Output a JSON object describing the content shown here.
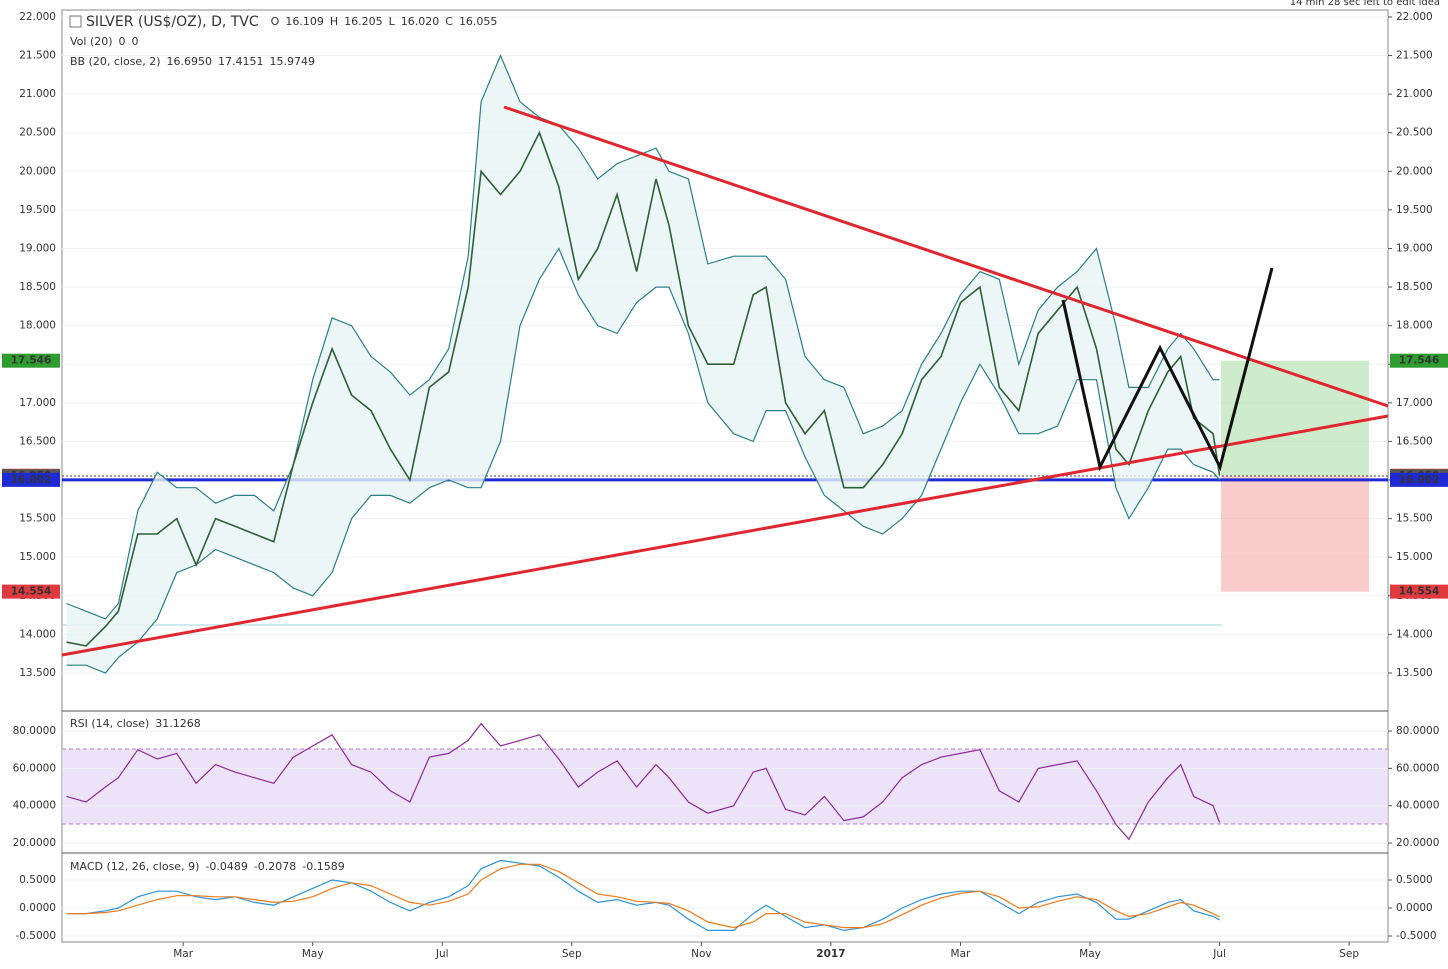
{
  "header_note": "14 min 28 sec left to edit idea",
  "chart_data": [
    {
      "type": "line",
      "legend": [
        {
          "text": "SILVER (US$/OZ), D, TVC",
          "color": "#333333"
        },
        {
          "text": "O",
          "color": "#666666"
        },
        {
          "value": 16.109,
          "color": "#8b1a1a"
        },
        {
          "text": "H",
          "color": "#666666"
        },
        {
          "value": 16.205,
          "color": "#8b1a1a"
        },
        {
          "text": "L",
          "color": "#666666"
        },
        {
          "value": 16.02,
          "label": "16.020",
          "color": "#8b1a1a"
        },
        {
          "text": "C",
          "color": "#666666"
        },
        {
          "value": 16.055,
          "color": "#8b1a1a"
        }
      ],
      "legend2": [
        {
          "text": "Vol (20)",
          "color": "#555555"
        },
        {
          "value": 0,
          "color": "#d03030"
        },
        {
          "value": 0,
          "color": "#2a9aa5"
        }
      ],
      "legend3": [
        {
          "text": "BB (20, close, 2)",
          "color": "#555555"
        },
        {
          "value": 16.695,
          "label": "16.6950",
          "color": "#8b1a1a"
        },
        {
          "value": 17.4151,
          "color": "#2a7f86"
        },
        {
          "value": 15.9749,
          "color": "#2a7f86"
        }
      ],
      "xlim": [
        0.13,
        20.6
      ],
      "ylim": [
        13.02,
        22.09
      ],
      "yticks": [
        {
          "value": 13.5,
          "label": "13.500"
        },
        {
          "value": 14,
          "label": "14.000"
        },
        {
          "value": 14.5,
          "label": "14.500"
        },
        {
          "value": 15,
          "label": "15.000"
        },
        {
          "value": 15.5,
          "label": "15.500"
        },
        {
          "value": 16,
          "label": "16.000"
        },
        {
          "value": 16.5,
          "label": "16.500"
        },
        {
          "value": 17,
          "label": "17.000"
        },
        {
          "value": 17.5,
          "label": "17.500"
        },
        {
          "value": 18,
          "label": "18.000"
        },
        {
          "value": 18.5,
          "label": "18.500"
        },
        {
          "value": 19,
          "label": "19.000"
        },
        {
          "value": 19.5,
          "label": "19.500"
        },
        {
          "value": 20,
          "label": "20.000"
        },
        {
          "value": 20.5,
          "label": "20.500"
        },
        {
          "value": 21,
          "label": "21.000"
        },
        {
          "value": 21.5,
          "label": "21.500"
        },
        {
          "value": 22,
          "label": "22.000"
        }
      ],
      "price_labels": [
        {
          "value": 17.546,
          "color": "#2e9c2e"
        },
        {
          "value": 16.055,
          "color": "#e0393e"
        },
        {
          "value": 16.05,
          "label": "16.050",
          "color": "#555555"
        },
        {
          "value": 16.002,
          "color": "#1f2ad4"
        },
        {
          "value": 14.554,
          "color": "#e0393e"
        }
      ],
      "x": [
        0.2,
        0.5,
        0.8,
        1.0,
        1.3,
        1.6,
        1.9,
        2.2,
        2.5,
        2.8,
        3.1,
        3.4,
        3.7,
        4.0,
        4.3,
        4.6,
        4.9,
        5.2,
        5.5,
        5.8,
        6.1,
        6.4,
        6.6,
        6.9,
        7.2,
        7.5,
        7.8,
        8.1,
        8.4,
        8.7,
        9.0,
        9.3,
        9.5,
        9.8,
        10.1,
        10.5,
        10.8,
        11.0,
        11.3,
        11.6,
        11.9,
        12.2,
        12.5,
        12.8,
        13.1,
        13.4,
        13.7,
        14.0,
        14.3,
        14.6,
        14.9,
        15.2,
        15.5,
        15.8,
        16.1,
        16.4,
        16.6,
        16.9,
        17.2,
        17.4,
        17.6,
        17.9,
        18.0
      ],
      "series": [
        {
          "color": "#2a7f86",
          "values": [
            14.4,
            14.3,
            14.2,
            14.4,
            15.6,
            16.1,
            15.9,
            15.9,
            15.7,
            15.8,
            15.8,
            15.6,
            16.2,
            17.3,
            18.1,
            18.0,
            17.6,
            17.4,
            17.1,
            17.3,
            17.7,
            18.9,
            20.9,
            21.5,
            20.9,
            20.7,
            20.6,
            20.3,
            19.9,
            20.1,
            20.2,
            20.3,
            20.0,
            19.9,
            18.8,
            18.9,
            18.9,
            18.9,
            18.6,
            17.6,
            17.3,
            17.2,
            16.6,
            16.7,
            16.9,
            17.5,
            17.9,
            18.4,
            18.7,
            18.6,
            17.5,
            18.2,
            18.5,
            18.7,
            19.0,
            18.0,
            17.2,
            17.2,
            17.7,
            17.9,
            17.7,
            17.3,
            17.3
          ]
        },
        {
          "color": "#2a7f86",
          "values": [
            13.6,
            13.6,
            13.5,
            13.7,
            13.9,
            14.2,
            14.8,
            14.9,
            15.1,
            15.0,
            14.9,
            14.8,
            14.6,
            14.5,
            14.8,
            15.5,
            15.8,
            15.8,
            15.7,
            15.9,
            16.0,
            15.9,
            15.9,
            16.5,
            18.0,
            18.6,
            19.0,
            18.4,
            18.0,
            17.9,
            18.3,
            18.5,
            18.5,
            17.9,
            17.0,
            16.6,
            16.5,
            16.9,
            16.9,
            16.3,
            15.8,
            15.6,
            15.4,
            15.3,
            15.5,
            15.8,
            16.4,
            17.0,
            17.5,
            17.1,
            16.6,
            16.6,
            16.7,
            17.3,
            17.3,
            15.9,
            15.5,
            15.9,
            16.4,
            16.4,
            16.2,
            16.1,
            16.0
          ]
        },
        {
          "color": "#2f5f36",
          "values": [
            13.9,
            13.85,
            14.1,
            14.3,
            15.3,
            15.3,
            15.5,
            14.9,
            15.5,
            15.4,
            15.3,
            15.2,
            16.2,
            17.0,
            17.7,
            17.1,
            16.9,
            16.4,
            16.0,
            17.2,
            17.4,
            18.5,
            20.0,
            19.7,
            20.0,
            20.5,
            19.8,
            18.6,
            19.0,
            19.7,
            18.7,
            19.9,
            19.3,
            18.0,
            17.5,
            17.5,
            18.4,
            18.5,
            17.0,
            16.6,
            16.9,
            15.9,
            15.9,
            16.2,
            16.6,
            17.3,
            17.6,
            18.3,
            18.5,
            17.2,
            16.9,
            17.9,
            18.2,
            18.5,
            17.7,
            16.4,
            16.2,
            16.9,
            17.4,
            17.6,
            16.8,
            16.6,
            16.06
          ]
        }
      ]
    },
    {
      "type": "line",
      "legend": [
        {
          "text": "RSI (14, close)",
          "color": "#555555"
        },
        {
          "value": 31.1268,
          "color": "#8e2a9a"
        }
      ],
      "xlim": [
        0.13,
        20.6
      ],
      "ylim": [
        15.2,
        90.2
      ],
      "yticks": [
        {
          "value": 20,
          "label": "20.0000"
        },
        {
          "value": 40,
          "label": "40.0000"
        },
        {
          "value": 60,
          "label": "60.0000"
        },
        {
          "value": 80,
          "label": "80.0000"
        }
      ],
      "x": [
        0.2,
        0.5,
        0.8,
        1.0,
        1.3,
        1.6,
        1.9,
        2.2,
        2.5,
        2.8,
        3.1,
        3.4,
        3.7,
        4.0,
        4.3,
        4.6,
        4.9,
        5.2,
        5.5,
        5.8,
        6.1,
        6.4,
        6.6,
        6.9,
        7.2,
        7.5,
        7.8,
        8.1,
        8.4,
        8.7,
        9.0,
        9.3,
        9.5,
        9.8,
        10.1,
        10.5,
        10.8,
        11.0,
        11.3,
        11.6,
        11.9,
        12.2,
        12.5,
        12.8,
        13.1,
        13.4,
        13.7,
        14.0,
        14.3,
        14.6,
        14.9,
        15.2,
        15.5,
        15.8,
        16.1,
        16.4,
        16.6,
        16.9,
        17.2,
        17.4,
        17.6,
        17.9,
        18.0
      ],
      "series": [
        {
          "color": "#8e2a9a",
          "values": [
            45,
            42,
            50,
            55,
            70,
            65,
            68,
            52,
            62,
            58,
            55,
            52,
            66,
            72,
            78,
            62,
            58,
            48,
            42,
            66,
            68,
            75,
            84,
            72,
            75,
            78,
            65,
            50,
            58,
            64,
            50,
            62,
            55,
            42,
            36,
            40,
            58,
            60,
            38,
            35,
            45,
            32,
            34,
            42,
            55,
            62,
            66,
            68,
            70,
            48,
            42,
            60,
            62,
            64,
            48,
            30,
            22,
            42,
            55,
            62,
            45,
            40,
            31
          ]
        }
      ]
    },
    {
      "type": "line",
      "legend": [
        {
          "text": "MACD (12, 26, close, 9)",
          "color": "#555555"
        },
        {
          "value": -0.0489,
          "color": "#d0257a"
        },
        {
          "value": -0.2078,
          "color": "#2b93d6"
        },
        {
          "value": -0.1589,
          "color": "#f07a1a"
        }
      ],
      "xlim": [
        0.13,
        20.6
      ],
      "ylim": [
        -0.607,
        0.946
      ],
      "yticks": [
        {
          "value": -0.5,
          "label": "-0.5000"
        },
        {
          "value": 0,
          "label": "0.0000"
        },
        {
          "value": 0.5,
          "label": "0.5000"
        }
      ],
      "xticks": [
        {
          "value": 2,
          "label": "Mar"
        },
        {
          "value": 4,
          "label": "May"
        },
        {
          "value": 6,
          "label": "Jul"
        },
        {
          "value": 8,
          "label": "Sep"
        },
        {
          "value": 10,
          "label": "Nov"
        },
        {
          "value": 12,
          "label": "2017"
        },
        {
          "value": 14,
          "label": "Mar"
        },
        {
          "value": 16,
          "label": "May"
        },
        {
          "value": 18,
          "label": "Jul"
        },
        {
          "value": 20,
          "label": "Sep"
        }
      ],
      "x": [
        0.2,
        0.5,
        0.8,
        1.0,
        1.3,
        1.6,
        1.9,
        2.2,
        2.5,
        2.8,
        3.1,
        3.4,
        3.7,
        4.0,
        4.3,
        4.6,
        4.9,
        5.2,
        5.5,
        5.8,
        6.1,
        6.4,
        6.6,
        6.9,
        7.2,
        7.5,
        7.8,
        8.1,
        8.4,
        8.7,
        9.0,
        9.3,
        9.5,
        9.8,
        10.1,
        10.5,
        10.8,
        11.0,
        11.3,
        11.6,
        11.9,
        12.2,
        12.5,
        12.8,
        13.1,
        13.4,
        13.7,
        14.0,
        14.3,
        14.6,
        14.9,
        15.2,
        15.5,
        15.8,
        16.1,
        16.4,
        16.6,
        16.9,
        17.2,
        17.4,
        17.6,
        17.9,
        18.0
      ],
      "series": [
        {
          "color": "#2b93d6",
          "values": [
            -0.1,
            -0.1,
            -0.05,
            0.0,
            0.2,
            0.3,
            0.3,
            0.2,
            0.15,
            0.2,
            0.1,
            0.05,
            0.2,
            0.35,
            0.5,
            0.45,
            0.3,
            0.1,
            -0.05,
            0.1,
            0.2,
            0.4,
            0.7,
            0.85,
            0.8,
            0.75,
            0.55,
            0.3,
            0.1,
            0.15,
            0.05,
            0.1,
            0.05,
            -0.2,
            -0.4,
            -0.4,
            -0.1,
            0.05,
            -0.15,
            -0.35,
            -0.3,
            -0.4,
            -0.35,
            -0.2,
            0.0,
            0.15,
            0.25,
            0.3,
            0.3,
            0.1,
            -0.1,
            0.1,
            0.2,
            0.25,
            0.1,
            -0.2,
            -0.2,
            -0.05,
            0.1,
            0.15,
            -0.05,
            -0.15,
            -0.21
          ]
        },
        {
          "color": "#f07a1a",
          "values": [
            -0.1,
            -0.1,
            -0.08,
            -0.05,
            0.05,
            0.15,
            0.22,
            0.22,
            0.2,
            0.2,
            0.15,
            0.1,
            0.12,
            0.2,
            0.35,
            0.45,
            0.4,
            0.25,
            0.1,
            0.05,
            0.12,
            0.25,
            0.5,
            0.7,
            0.78,
            0.78,
            0.65,
            0.45,
            0.25,
            0.2,
            0.12,
            0.1,
            0.08,
            -0.05,
            -0.25,
            -0.35,
            -0.25,
            -0.1,
            -0.1,
            -0.25,
            -0.3,
            -0.35,
            -0.35,
            -0.28,
            -0.12,
            0.05,
            0.18,
            0.26,
            0.3,
            0.2,
            0.0,
            0.02,
            0.12,
            0.2,
            0.15,
            -0.05,
            -0.15,
            -0.1,
            0.02,
            0.1,
            0.05,
            -0.1,
            -0.16
          ]
        }
      ]
    }
  ]
}
